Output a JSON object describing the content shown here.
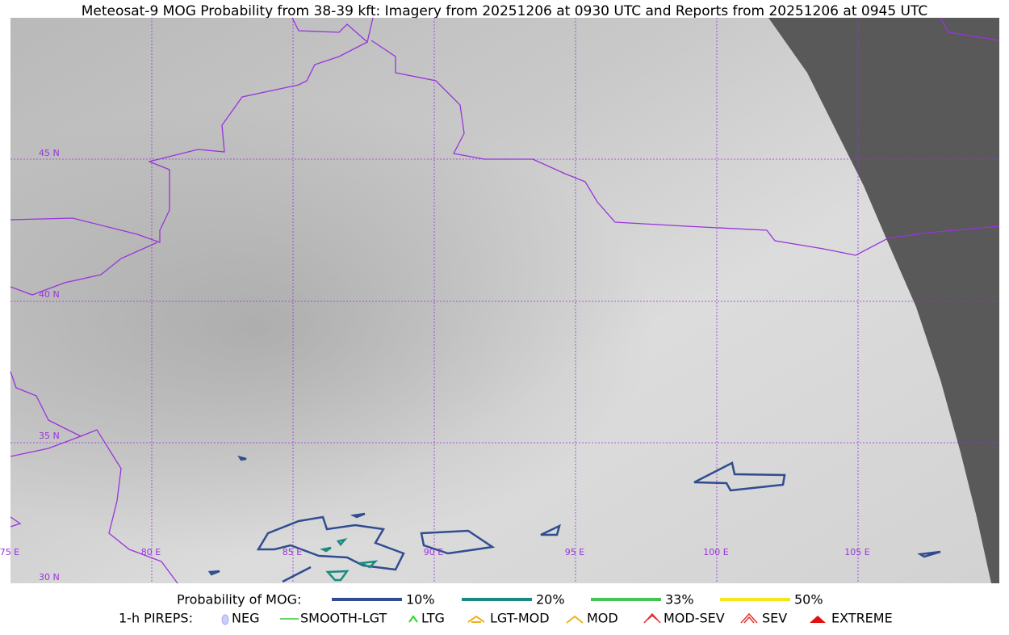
{
  "title": "Meteosat-9 MOG Probability from 38-39 kft: Imagery from 20251206 at 0930 UTC and Reports from 20251206 at 0945 UTC",
  "map": {
    "lat_labels": [
      "45 N",
      "40 N",
      "35 N",
      "30 N"
    ],
    "lon_labels": [
      "75 E",
      "80 E",
      "85 E",
      "90 E",
      "95 E",
      "100 E",
      "105 E"
    ]
  },
  "legend": {
    "probability_label": "Probability of MOG:",
    "probability_items": [
      "10%",
      "20%",
      "33%",
      "50%"
    ],
    "pireps_label": "1-h PIREPS:",
    "pireps_items": [
      "NEG",
      "SMOOTH-LGT",
      "LTG",
      "LGT-MOD",
      "MOD",
      "MOD-SEV",
      "SEV",
      "EXTREME"
    ]
  }
}
